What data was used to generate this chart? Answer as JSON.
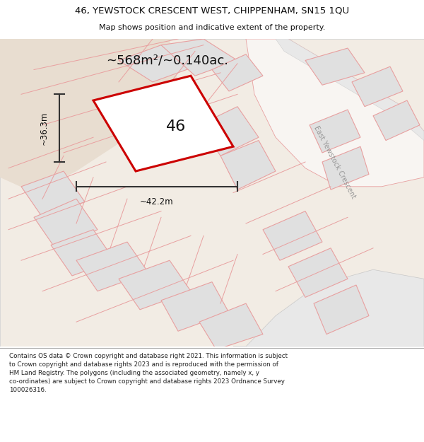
{
  "title_line1": "46, YEWSTOCK CRESCENT WEST, CHIPPENHAM, SN15 1QU",
  "title_line2": "Map shows position and indicative extent of the property.",
  "area_text": "~568m²/~0.140ac.",
  "label_46": "46",
  "dim_width": "~42.2m",
  "dim_height": "~36.3m",
  "road_label": "East Yewstock Crescent",
  "footer_text": "Contains OS data © Crown copyright and database right 2021. This information is subject to Crown copyright and database rights 2023 and is reproduced with the permission of HM Land Registry. The polygons (including the associated geometry, namely x, y co-ordinates) are subject to Crown copyright and database rights 2023 Ordnance Survey 100026316.",
  "bg_map_color": "#f2ece4",
  "bg_white": "#ffffff",
  "plot_fill": "#ffffff",
  "plot_stroke": "#cc0000",
  "other_plot_fill": "#e0e0e0",
  "other_plot_stroke": "#e8a0a0",
  "road_stroke": "#e8a0a0",
  "title_bg": "#ffffff",
  "footer_bg": "#ffffff",
  "map_border": "#cccccc",
  "dim_color": "#333333",
  "road_label_color": "#999999",
  "text_color": "#111111"
}
